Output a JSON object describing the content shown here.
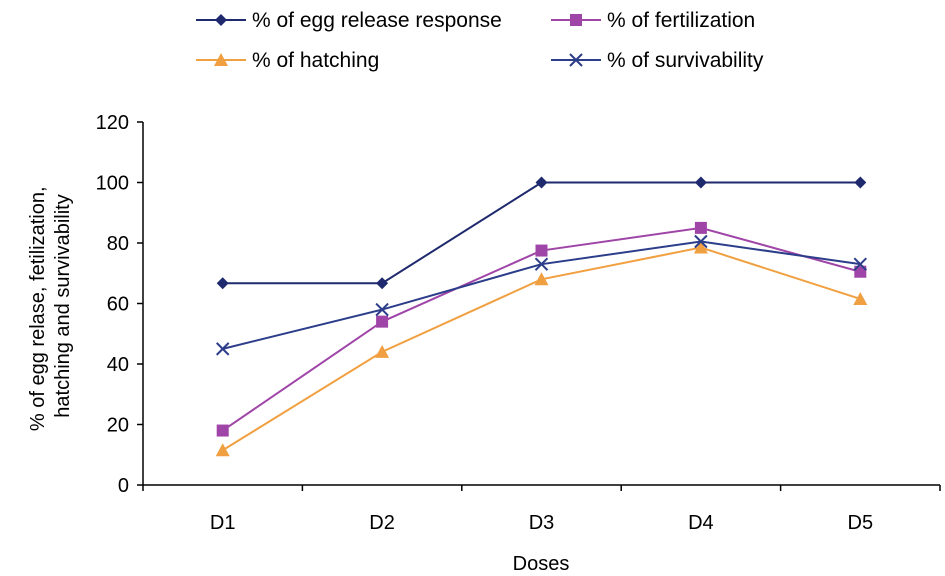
{
  "chart_data": {
    "type": "line",
    "categories": [
      "D1",
      "D2",
      "D3",
      "D4",
      "D5"
    ],
    "xlabel": "Doses",
    "ylabel_lines": [
      "% of egg relase, fetilization,",
      "hatching and survivability"
    ],
    "ylim": [
      0,
      120
    ],
    "yticks": [
      0,
      20,
      40,
      60,
      80,
      100,
      120
    ],
    "grid": false,
    "legend_position": "top",
    "series": [
      {
        "name": "% of egg release response",
        "values": [
          66.7,
          66.7,
          100,
          100,
          100
        ],
        "color": "#1f2a6e",
        "marker": "diamond"
      },
      {
        "name": "% of fertilization",
        "values": [
          18,
          54,
          77.5,
          85,
          70.5
        ],
        "color": "#a045a8",
        "marker": "square"
      },
      {
        "name": "% of hatching",
        "values": [
          11.5,
          44,
          68,
          78.5,
          61.5
        ],
        "color": "#f0a040",
        "marker": "triangle"
      },
      {
        "name": "% of survivability",
        "values": [
          45,
          58,
          73,
          80.5,
          73
        ],
        "color": "#2c3d8a",
        "marker": "x"
      }
    ]
  }
}
